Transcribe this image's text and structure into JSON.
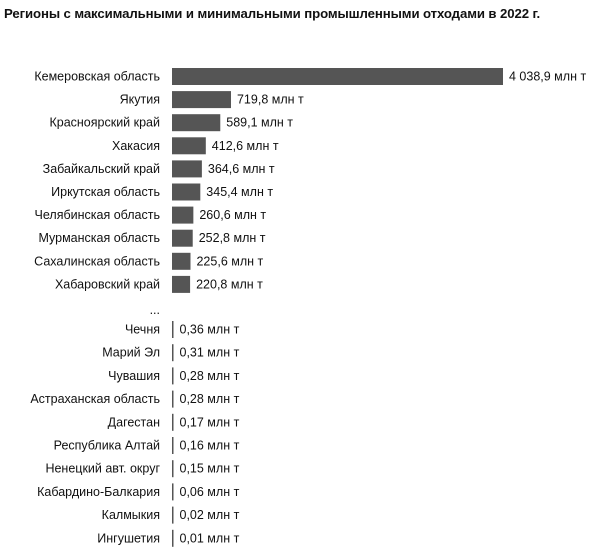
{
  "chart_data": {
    "type": "bar",
    "orientation": "horizontal",
    "title": "Регионы с максимальными и минимальными промышленными отходами в 2022 г.",
    "gap_label": "...",
    "bar_color": "#555555",
    "categories": [
      "Кемеровская область",
      "Якутия",
      "Красноярский край",
      "Хакасия",
      "Забайкальский край",
      "Иркутская область",
      "Челябинская область",
      "Мурманская область",
      "Сахалинская область",
      "Хабаровский край",
      "Чечня",
      "Марий Эл",
      "Чувашия",
      "Астраханская область",
      "Дагестан",
      "Республика Алтай",
      "Ненецкий авт. округ",
      "Кабардино-Балкария",
      "Калмыкия",
      "Ингушетия"
    ],
    "values": [
      4038.9,
      719.8,
      589.1,
      412.6,
      364.6,
      345.4,
      260.6,
      252.8,
      225.6,
      220.8,
      0.36,
      0.31,
      0.28,
      0.28,
      0.17,
      0.16,
      0.15,
      0.06,
      0.02,
      0.01
    ],
    "value_labels": [
      "4 038,9 млн т",
      "719,8 млн т",
      "589,1 млн т",
      "412,6 млн т",
      "364,6 млн т",
      "345,4 млн т",
      "260,6 млн т",
      "252,8 млн т",
      "225,6 млн т",
      "220,8 млн т",
      "0,36 млн т",
      "0,31 млн т",
      "0,28 млн т",
      "0,28 млн т",
      "0,17 млн т",
      "0,16 млн т",
      "0,15 млн т",
      "0,06 млн т",
      "0,02 млн т",
      "0,01 млн т"
    ],
    "xlim": [
      0,
      4038.9
    ],
    "grid": false,
    "legend": "none"
  }
}
